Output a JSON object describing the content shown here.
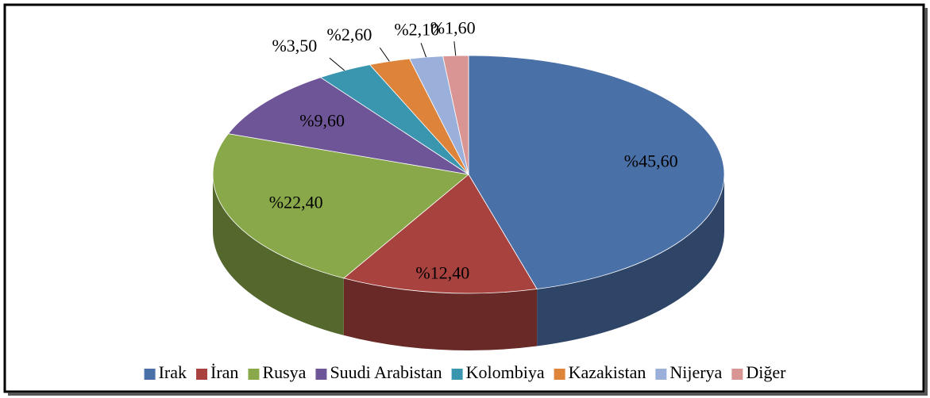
{
  "chart_data": {
    "type": "pie3d",
    "categories": [
      "Irak",
      "İran",
      "Rusya",
      "Suudi Arabistan",
      "Kolombiya",
      "Kazakistan",
      "Nijerya",
      "Diğer"
    ],
    "values": [
      45.6,
      12.4,
      22.4,
      9.6,
      3.5,
      2.6,
      2.1,
      1.6
    ],
    "value_labels": [
      "%45,60",
      "%12,40",
      "%22,40",
      "%9,60",
      "%3,50",
      "%2,60",
      "%2,10",
      "%1,60"
    ],
    "colors": [
      "#4a70a8",
      "#a8423f",
      "#88a84a",
      "#6e5597",
      "#3a95ae",
      "#de843a",
      "#9ab0da",
      "#d99594"
    ],
    "legend": "bottom"
  }
}
